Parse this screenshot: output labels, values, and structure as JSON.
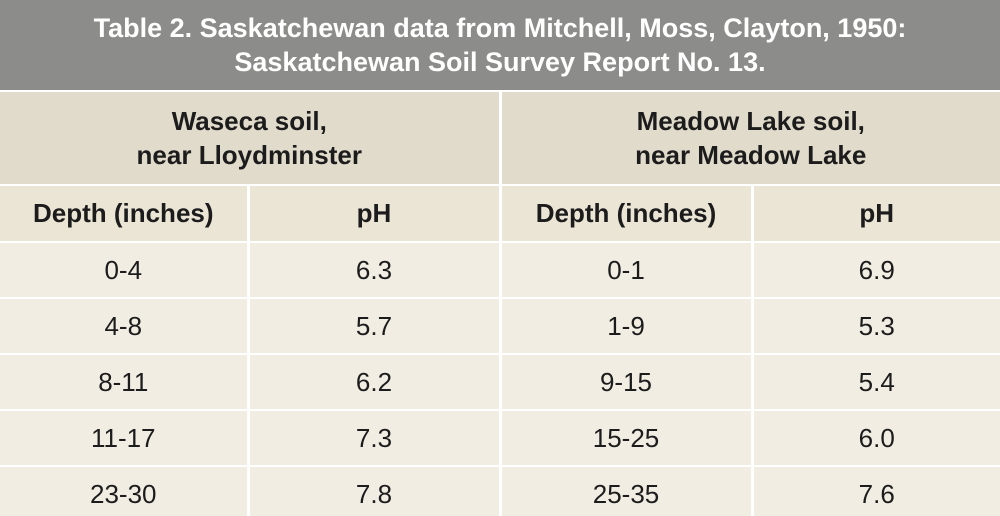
{
  "title": {
    "line1": "Table 2. Saskatchewan data from Mitchell, Moss, Clayton, 1950:",
    "line2": "Saskatchewan Soil Survey Report No. 13."
  },
  "groups": [
    {
      "line1": "Waseca soil,",
      "line2": "near Lloydminster"
    },
    {
      "line1": "Meadow Lake soil,",
      "line2": "near Meadow Lake"
    }
  ],
  "columns": [
    "Depth (inches)",
    "pH",
    "Depth (inches)",
    "pH"
  ],
  "rows": [
    [
      "0-4",
      "6.3",
      "0-1",
      "6.9"
    ],
    [
      "4-8",
      "5.7",
      "1-9",
      "5.3"
    ],
    [
      "8-11",
      "6.2",
      "9-15",
      "5.4"
    ],
    [
      "11-17",
      "7.3",
      "15-25",
      "6.0"
    ],
    [
      "23-30",
      "7.8",
      "25-35",
      "7.6"
    ]
  ]
}
